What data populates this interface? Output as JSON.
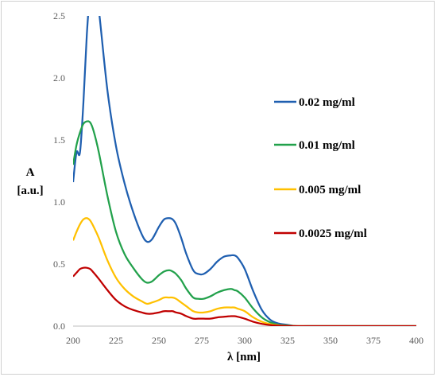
{
  "chart_data": {
    "type": "line",
    "xlabel": "λ [nm]",
    "ylabel_line1": "A",
    "ylabel_line2": "[a.u.]",
    "xlim": [
      200,
      400
    ],
    "ylim": [
      0,
      2.5
    ],
    "x_ticks": [
      200,
      225,
      250,
      275,
      300,
      325,
      350,
      375,
      400
    ],
    "y_ticks": [
      "0.0",
      "0.5",
      "1.0",
      "1.5",
      "2.0",
      "2.5"
    ],
    "grid": false,
    "legend_position": "right",
    "x": [
      200,
      202,
      204,
      206,
      208,
      210,
      212,
      215,
      220,
      225,
      230,
      235,
      240,
      243,
      246,
      250,
      253,
      256,
      258,
      260,
      263,
      266,
      270,
      273,
      276,
      280,
      284,
      288,
      292,
      294,
      296,
      300,
      305,
      310,
      315,
      320,
      325,
      330,
      340,
      350,
      375,
      400
    ],
    "series": [
      {
        "name": "0.02 mg/ml",
        "color": "#1f5fb0",
        "values": [
          1.16,
          1.4,
          1.4,
          1.8,
          2.35,
          2.7,
          2.85,
          2.55,
          1.9,
          1.45,
          1.15,
          0.92,
          0.74,
          0.68,
          0.7,
          0.8,
          0.86,
          0.87,
          0.86,
          0.82,
          0.71,
          0.58,
          0.45,
          0.42,
          0.42,
          0.46,
          0.52,
          0.56,
          0.57,
          0.57,
          0.55,
          0.46,
          0.28,
          0.13,
          0.05,
          0.02,
          0.01,
          0.0,
          0.0,
          0.0,
          0.0,
          0.0
        ]
      },
      {
        "name": "0.01 mg/ml",
        "color": "#22a14b",
        "values": [
          1.3,
          1.46,
          1.56,
          1.63,
          1.65,
          1.64,
          1.57,
          1.4,
          1.05,
          0.76,
          0.58,
          0.47,
          0.38,
          0.35,
          0.36,
          0.41,
          0.44,
          0.45,
          0.44,
          0.42,
          0.37,
          0.3,
          0.23,
          0.22,
          0.22,
          0.24,
          0.27,
          0.29,
          0.3,
          0.29,
          0.28,
          0.23,
          0.14,
          0.07,
          0.03,
          0.01,
          0.005,
          0.0,
          0.0,
          0.0,
          0.0,
          0.0
        ]
      },
      {
        "name": "0.005 mg/ml",
        "color": "#ffc000",
        "values": [
          0.69,
          0.76,
          0.82,
          0.86,
          0.87,
          0.85,
          0.8,
          0.71,
          0.53,
          0.39,
          0.3,
          0.24,
          0.2,
          0.18,
          0.19,
          0.21,
          0.23,
          0.23,
          0.23,
          0.22,
          0.19,
          0.16,
          0.12,
          0.11,
          0.11,
          0.12,
          0.14,
          0.15,
          0.15,
          0.15,
          0.14,
          0.12,
          0.07,
          0.035,
          0.015,
          0.006,
          0.002,
          0.0,
          0.0,
          0.0,
          0.0,
          0.0
        ]
      },
      {
        "name": "0.0025 mg/ml",
        "color": "#c00000",
        "values": [
          0.4,
          0.43,
          0.46,
          0.47,
          0.47,
          0.46,
          0.43,
          0.38,
          0.29,
          0.21,
          0.16,
          0.13,
          0.11,
          0.1,
          0.1,
          0.11,
          0.12,
          0.12,
          0.12,
          0.11,
          0.1,
          0.08,
          0.06,
          0.06,
          0.06,
          0.06,
          0.07,
          0.075,
          0.08,
          0.08,
          0.075,
          0.06,
          0.035,
          0.018,
          0.008,
          0.003,
          0.001,
          0.0,
          0.0,
          0.0,
          0.0,
          0.0
        ]
      }
    ]
  },
  "colors": {
    "axis": "#bfbfbf",
    "tick_text": "#595959"
  }
}
